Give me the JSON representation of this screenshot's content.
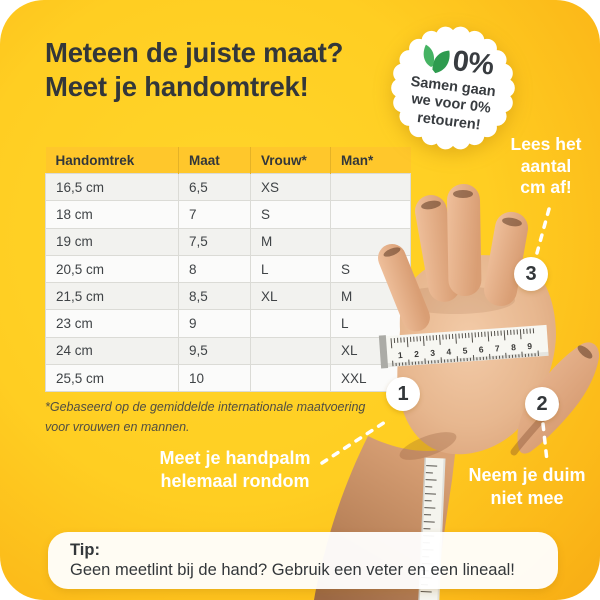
{
  "header": {
    "title_line1": "Meteen de juiste maat?",
    "title_line2": "Meet je handomtrek!"
  },
  "badge": {
    "percent": "0%",
    "lines": [
      "Samen gaan",
      "we voor 0%",
      "retouren!"
    ],
    "leaf_color_dark": "#2e9b4f",
    "leaf_color_light": "#45b363"
  },
  "table": {
    "headers": [
      "Handomtrek",
      "Maat",
      "Vrouw*",
      "Man*"
    ],
    "rows": [
      [
        "16,5 cm",
        "6,5",
        "XS",
        ""
      ],
      [
        "18 cm",
        "7",
        "S",
        ""
      ],
      [
        "19 cm",
        "7,5",
        "M",
        ""
      ],
      [
        "20,5 cm",
        "8",
        "L",
        "S"
      ],
      [
        "21,5 cm",
        "8,5",
        "XL",
        "M"
      ],
      [
        "23 cm",
        "9",
        "",
        "L"
      ],
      [
        "24 cm",
        "9,5",
        "",
        "XL"
      ],
      [
        "25,5 cm",
        "10",
        "",
        "XXL"
      ]
    ],
    "footnote_line1": "*Gebaseerd op de gemiddelde internationale maatvoering",
    "footnote_line2": "voor vrouwen en mannen."
  },
  "annotations": {
    "step1": {
      "number": "1",
      "lines": [
        "Meet je handpalm",
        "helemaal rondom"
      ]
    },
    "step2": {
      "number": "2",
      "lines": [
        "Neem je duim",
        "niet mee"
      ]
    },
    "step3": {
      "number": "3",
      "lines": [
        "Lees het",
        "aantal",
        "cm af!"
      ]
    }
  },
  "tip": {
    "title": "Tip:",
    "text": "Geen meetlint bij de hand? Gebruik een veter en een lineaal!"
  },
  "tape": {
    "numbers": [
      "1",
      "2",
      "3",
      "4",
      "5",
      "6",
      "7",
      "8",
      "9"
    ]
  },
  "colors": {
    "background_center": "#ffd62b",
    "background_edge": "#f19b10",
    "table_header_bg": "#ffc72b",
    "text_dark": "#33373a",
    "text_white": "#ffffff"
  }
}
